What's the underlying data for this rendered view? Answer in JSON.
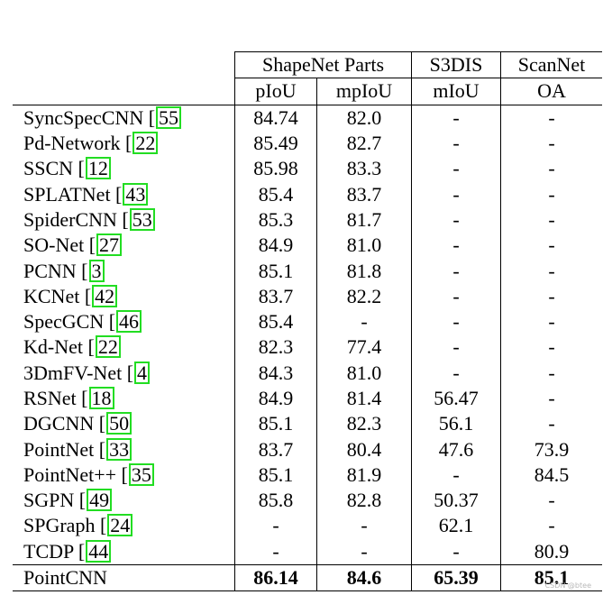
{
  "header": {
    "groups": [
      "ShapeNet Parts",
      "S3DIS",
      "ScanNet"
    ],
    "metrics": [
      "pIoU",
      "mpIoU",
      "mIoU",
      "OA"
    ]
  },
  "rows": [
    {
      "method": "SyncSpecCNN [",
      "cite": "55",
      "vals": [
        "84.74",
        "82.0",
        "-",
        "-"
      ]
    },
    {
      "method": "Pd-Network [",
      "cite": "22",
      "vals": [
        "85.49",
        "82.7",
        "-",
        "-"
      ]
    },
    {
      "method": "SSCN [",
      "cite": "12",
      "vals": [
        "85.98",
        "83.3",
        "-",
        "-"
      ]
    },
    {
      "method": "SPLATNet [",
      "cite": "43",
      "vals": [
        "85.4",
        "83.7",
        "-",
        "-"
      ]
    },
    {
      "method": "SpiderCNN [",
      "cite": "53",
      "vals": [
        "85.3",
        "81.7",
        "-",
        "-"
      ]
    },
    {
      "method": "SO-Net [",
      "cite": "27",
      "vals": [
        "84.9",
        "81.0",
        "-",
        "-"
      ]
    },
    {
      "method": "PCNN [",
      "cite": "3",
      "vals": [
        "85.1",
        "81.8",
        "-",
        "-"
      ]
    },
    {
      "method": "KCNet [",
      "cite": "42",
      "vals": [
        "83.7",
        "82.2",
        "-",
        "-"
      ]
    },
    {
      "method": "SpecGCN [",
      "cite": "46",
      "vals": [
        "85.4",
        "-",
        "-",
        "-"
      ]
    },
    {
      "method": "Kd-Net [",
      "cite": "22",
      "vals": [
        "82.3",
        "77.4",
        "-",
        "-"
      ]
    },
    {
      "method": "3DmFV-Net [",
      "cite": "4",
      "vals": [
        "84.3",
        "81.0",
        "-",
        "-"
      ]
    },
    {
      "method": "RSNet [",
      "cite": "18",
      "vals": [
        "84.9",
        "81.4",
        "56.47",
        "-"
      ]
    },
    {
      "method": "DGCNN [",
      "cite": "50",
      "vals": [
        "85.1",
        "82.3",
        "56.1",
        "-"
      ]
    },
    {
      "method": "PointNet [",
      "cite": "33",
      "vals": [
        "83.7",
        "80.4",
        "47.6",
        "73.9"
      ]
    },
    {
      "method": "PointNet++ [",
      "cite": "35",
      "vals": [
        "85.1",
        "81.9",
        "-",
        "84.5"
      ]
    },
    {
      "method": "SGPN [",
      "cite": "49",
      "vals": [
        "85.8",
        "82.8",
        "50.37",
        "-"
      ]
    },
    {
      "method": "SPGraph [",
      "cite": "24",
      "vals": [
        "-",
        "-",
        "62.1",
        "-"
      ]
    },
    {
      "method": "TCDP [",
      "cite": "44",
      "vals": [
        "-",
        "-",
        "-",
        "80.9"
      ]
    }
  ],
  "final": {
    "method": "PointCNN",
    "vals": [
      "86.14",
      "84.6",
      "65.39",
      "85.1"
    ]
  },
  "watermark": "CSDN @btee"
}
